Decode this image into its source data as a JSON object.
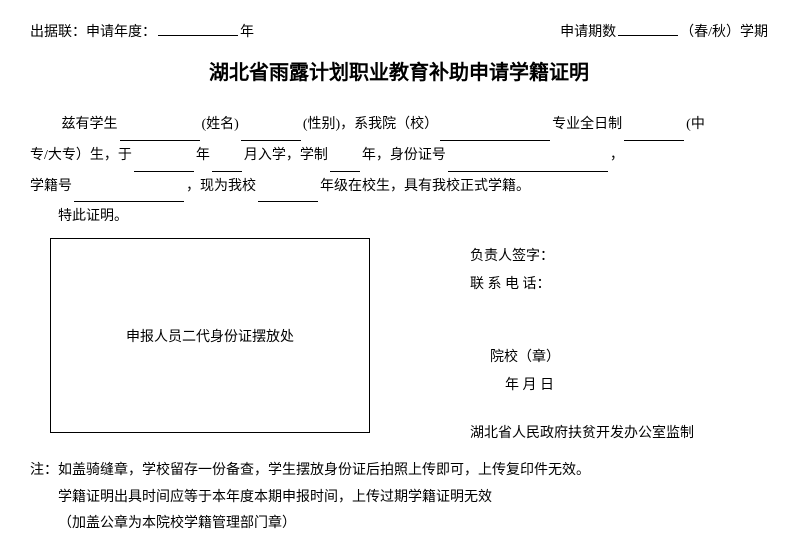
{
  "header": {
    "left_label1": "出据联：",
    "left_label2": "申请年度：",
    "left_suffix": "年",
    "right_label": "申请期数",
    "right_paren": "（春/秋）学期"
  },
  "title": "湖北省雨露计划职业教育补助申请学籍证明",
  "body": {
    "line1_a": "兹有学生",
    "line1_b": "(姓名)",
    "line1_c": "(性别)，系我院（校）",
    "line1_d": "专业全日制",
    "line1_e": "(中",
    "line2_a": "专/大专）生，于",
    "line2_b": "年",
    "line2_c": "月入学，学制",
    "line2_d": "年，身份证号",
    "line2_e": "，",
    "line3_a": "学籍号",
    "line3_b": "，现为我校",
    "line3_c": "年级在校生，具有我校正式学籍。",
    "line4": "特此证明。"
  },
  "idbox": "申报人员二代身份证摆放处",
  "right": {
    "sign": "负责人签字：",
    "tel": "联 系 电 话：",
    "school": "院校（章）",
    "date": "年    月    日",
    "supervise": "湖北省人民政府扶贫开发办公室监制"
  },
  "notes": {
    "prefix": "注：",
    "n1": "如盖骑缝章，学校留存一份备查，学生摆放身份证后拍照上传即可，上传复印件无效。",
    "n2": "学籍证明出具时间应等于本年度本期申报时间，上传过期学籍证明无效",
    "n3": "（加盖公章为本院校学籍管理部门章）"
  }
}
